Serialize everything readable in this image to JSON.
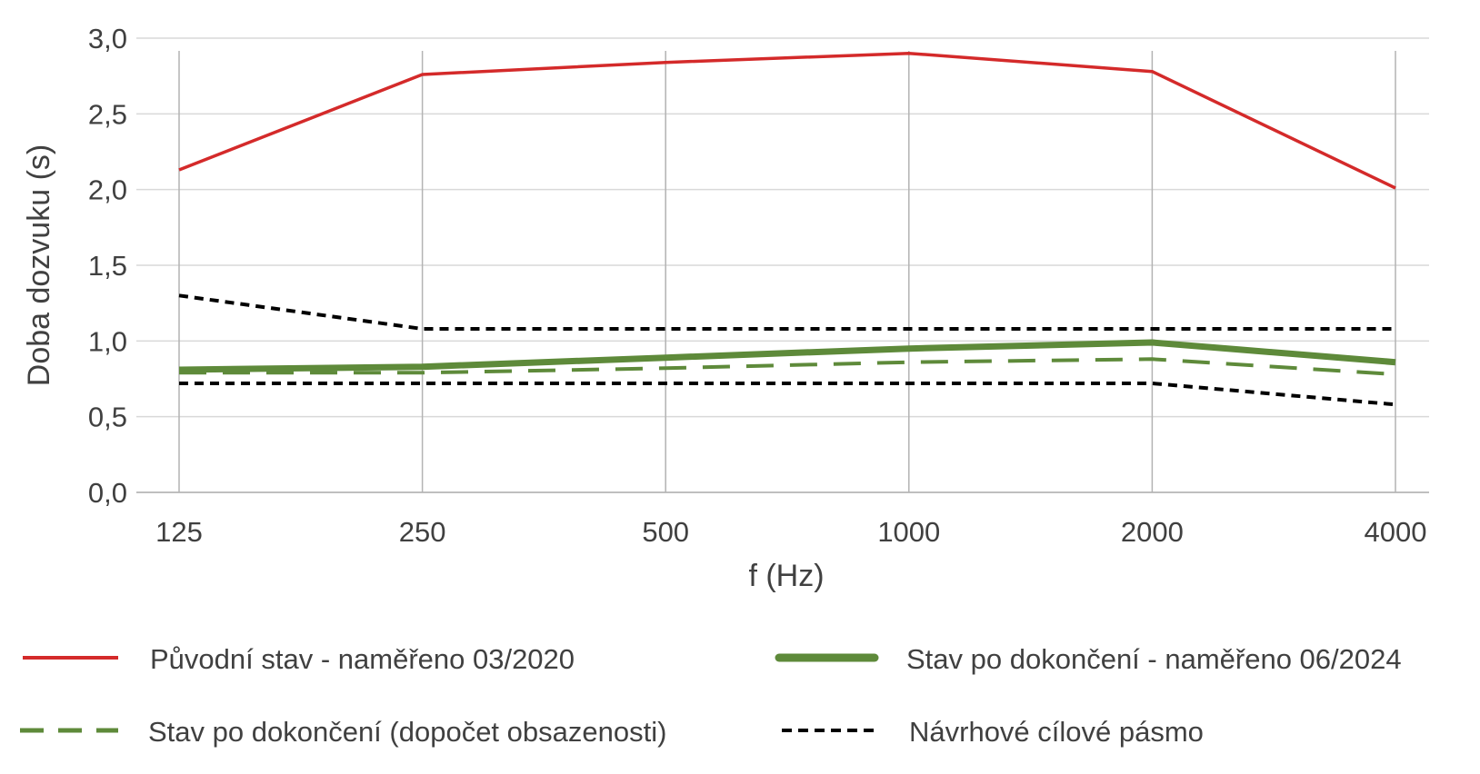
{
  "chart_data": {
    "type": "line",
    "title": "",
    "xlabel": "f (Hz)",
    "ylabel": "Doba dozvuku (s)",
    "categories": [
      "125",
      "250",
      "500",
      "1000",
      "2000",
      "4000"
    ],
    "ylim": [
      0,
      3
    ],
    "yticks": [
      "0,0",
      "0,5",
      "1,0",
      "1,5",
      "2,0",
      "2,5",
      "3,0"
    ],
    "grid": true,
    "legend_position": "bottom",
    "series": [
      {
        "name": "Původní stav - naměřeno 03/2020",
        "color": "#d42a2a",
        "style": "solid",
        "width": "thin",
        "values": [
          2.13,
          2.76,
          2.84,
          2.9,
          2.78,
          2.01
        ]
      },
      {
        "name": "Stav po dokončení - naměřeno 06/2024",
        "color": "#5e8a3a",
        "style": "solid",
        "width": "thick",
        "values": [
          0.81,
          0.83,
          0.89,
          0.95,
          0.99,
          0.86
        ]
      },
      {
        "name": "Stav po dokončení (dopočet obsazenosti)",
        "color": "#5e8a3a",
        "style": "dashed",
        "width": "medium",
        "values": [
          0.79,
          0.79,
          0.82,
          0.86,
          0.88,
          0.78
        ]
      },
      {
        "name": "Návrhové cílové pásmo",
        "color": "#000000",
        "style": "dotted",
        "width": "medium",
        "values": [
          1.3,
          1.08,
          1.08,
          1.08,
          1.08,
          1.08
        ]
      },
      {
        "name": "",
        "color": "#000000",
        "style": "dotted",
        "width": "medium",
        "values": [
          0.72,
          0.72,
          0.72,
          0.72,
          0.72,
          0.58
        ]
      }
    ]
  }
}
